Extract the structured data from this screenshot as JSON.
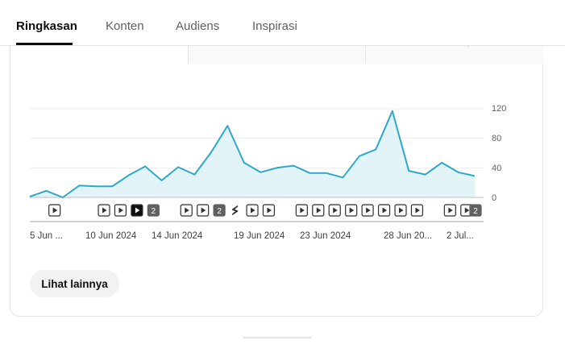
{
  "tabs": [
    {
      "label": "Ringkasan",
      "active": true
    },
    {
      "label": "Konten",
      "active": false
    },
    {
      "label": "Audiens",
      "active": false
    },
    {
      "label": "Inspirasi",
      "active": false
    }
  ],
  "metric_stub_text": "sebelumnya",
  "more_button": "Lihat lainnya",
  "colors": {
    "line": "#2ea8c9",
    "fill": "#e3f4f9",
    "text_dark": "#0f0f0f"
  },
  "chart_data": {
    "type": "area",
    "y_ticks": [
      "120",
      "80",
      "40",
      "0"
    ],
    "ylim": [
      0,
      120
    ],
    "x_labels": [
      "5 Jun ...",
      "10 Jun 2024",
      "14 Jun 2024",
      "19 Jun 2024",
      "23 Jun 2024",
      "28 Jun 20...",
      "2 Jul..."
    ],
    "values": [
      1,
      9,
      0,
      16,
      15,
      15,
      30,
      42,
      23,
      41,
      31,
      61,
      97,
      47,
      34,
      40,
      43,
      33,
      33,
      27,
      56,
      65,
      117,
      36,
      31,
      47,
      34,
      29
    ],
    "markers": [
      {
        "day": 1,
        "icon": "play"
      },
      {
        "day": 4,
        "icon": "play"
      },
      {
        "day": 5,
        "icon": "play"
      },
      {
        "day": 6,
        "icon": "play",
        "selected": true
      },
      {
        "day": 7,
        "count": "2"
      },
      {
        "day": 9,
        "icon": "play"
      },
      {
        "day": 10,
        "icon": "play"
      },
      {
        "day": 11,
        "count": "2"
      },
      {
        "day": 12,
        "icon": "shorts"
      },
      {
        "day": 13,
        "icon": "play"
      },
      {
        "day": 14,
        "icon": "play"
      },
      {
        "day": 16,
        "icon": "play"
      },
      {
        "day": 17,
        "icon": "play"
      },
      {
        "day": 18,
        "icon": "play"
      },
      {
        "day": 19,
        "icon": "play"
      },
      {
        "day": 20,
        "icon": "play"
      },
      {
        "day": 21,
        "icon": "play"
      },
      {
        "day": 22,
        "icon": "play"
      },
      {
        "day": 23,
        "icon": "play"
      },
      {
        "day": 25,
        "icon": "play"
      },
      {
        "day": 26,
        "icon": "play"
      },
      {
        "day": 27,
        "count": "2"
      }
    ]
  }
}
